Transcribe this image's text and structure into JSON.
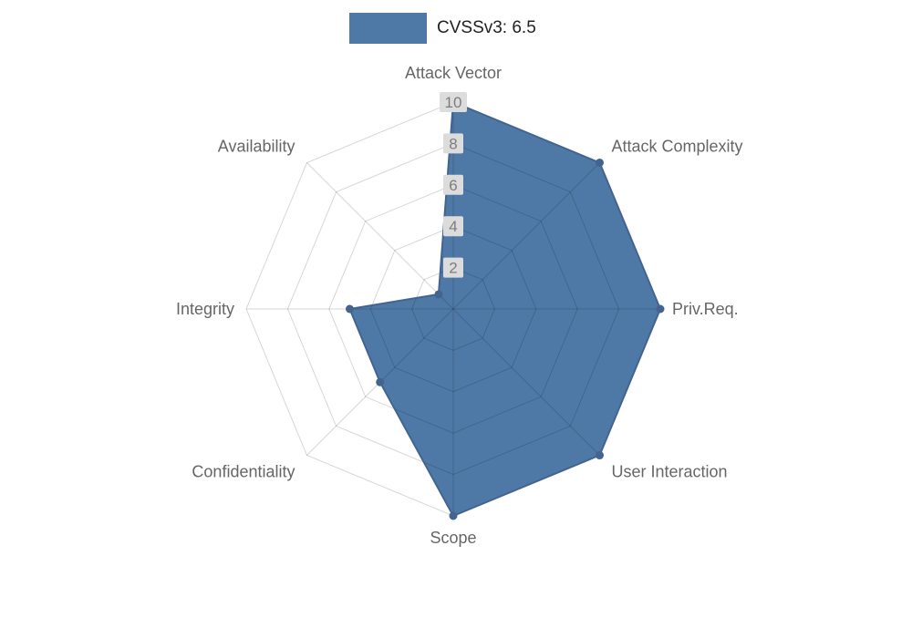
{
  "legend": {
    "label": "CVSSv3: 6.5"
  },
  "colors": {
    "series_fill": "#4e79a7",
    "series_line": "#42648f",
    "point_fill": "#42648f",
    "grid_line": "rgba(0,0,0,0.16)",
    "tick_bg": "#dcdcdc",
    "tick_text": "#7d7d7d",
    "axis_label": "#666666",
    "legend_text": "#222222",
    "background": "#ffffff"
  },
  "chart_data": {
    "type": "radar",
    "title": "CVSSv3: 6.5",
    "legend_position": "top",
    "grid": true,
    "max": 10,
    "min": 0,
    "ticks": [
      2,
      4,
      6,
      8,
      10
    ],
    "axes": [
      "Attack Vector",
      "Attack Complexity",
      "Priv.Req.",
      "User Interaction",
      "Scope",
      "Confidentiality",
      "Integrity",
      "Availability"
    ],
    "series": [
      {
        "name": "CVSSv3: 6.5",
        "values": [
          10,
          10,
          10,
          10,
          10,
          5,
          5,
          1
        ]
      }
    ]
  }
}
